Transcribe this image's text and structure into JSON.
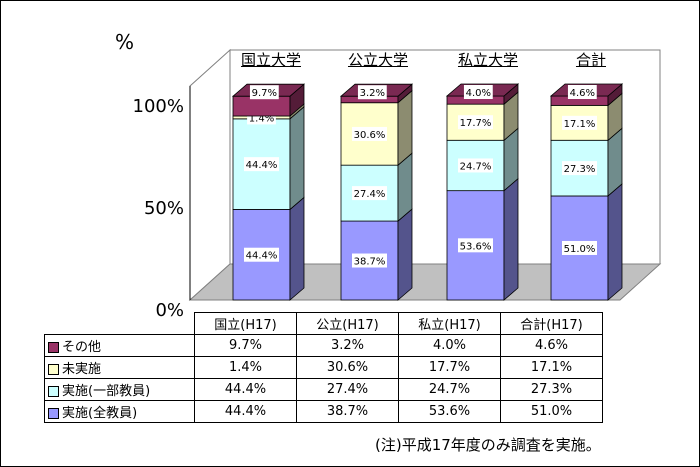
{
  "chart_data": {
    "type": "bar",
    "stacked": true,
    "y_unit": "%",
    "yticks": [
      "0%",
      "50%",
      "100%"
    ],
    "ylim": [
      0,
      100
    ],
    "category_titles": [
      "国立大学",
      "公立大学",
      "私立大学",
      "合計"
    ],
    "categories": [
      "国立(H17)",
      "公立(H17)",
      "私立(H17)",
      "合計(H17)"
    ],
    "series": [
      {
        "name": "実施(全教員)",
        "color": "#9999ff",
        "values": [
          44.4,
          38.7,
          53.6,
          51.0
        ],
        "labels": [
          "44.4%",
          "38.7%",
          "53.6%",
          "51.0%"
        ]
      },
      {
        "name": "実施(一部教員)",
        "color": "#ccffff",
        "values": [
          44.4,
          27.4,
          24.7,
          27.3
        ],
        "labels": [
          "44.4%",
          "27.4%",
          "24.7%",
          "27.3%"
        ]
      },
      {
        "name": "未実施",
        "color": "#ffffcc",
        "values": [
          1.4,
          30.6,
          17.7,
          17.1
        ],
        "labels": [
          "1.4%",
          "30.6%",
          "17.7%",
          "17.1%"
        ]
      },
      {
        "name": "その他",
        "color": "#993366",
        "values": [
          9.7,
          3.2,
          4.0,
          4.6
        ],
        "labels": [
          "9.7%",
          "3.2%",
          "4.0%",
          "4.6%"
        ]
      }
    ],
    "legend_placement": "table-left",
    "grid": false
  },
  "note": "(注)平成17年度のみ調査を実施。"
}
